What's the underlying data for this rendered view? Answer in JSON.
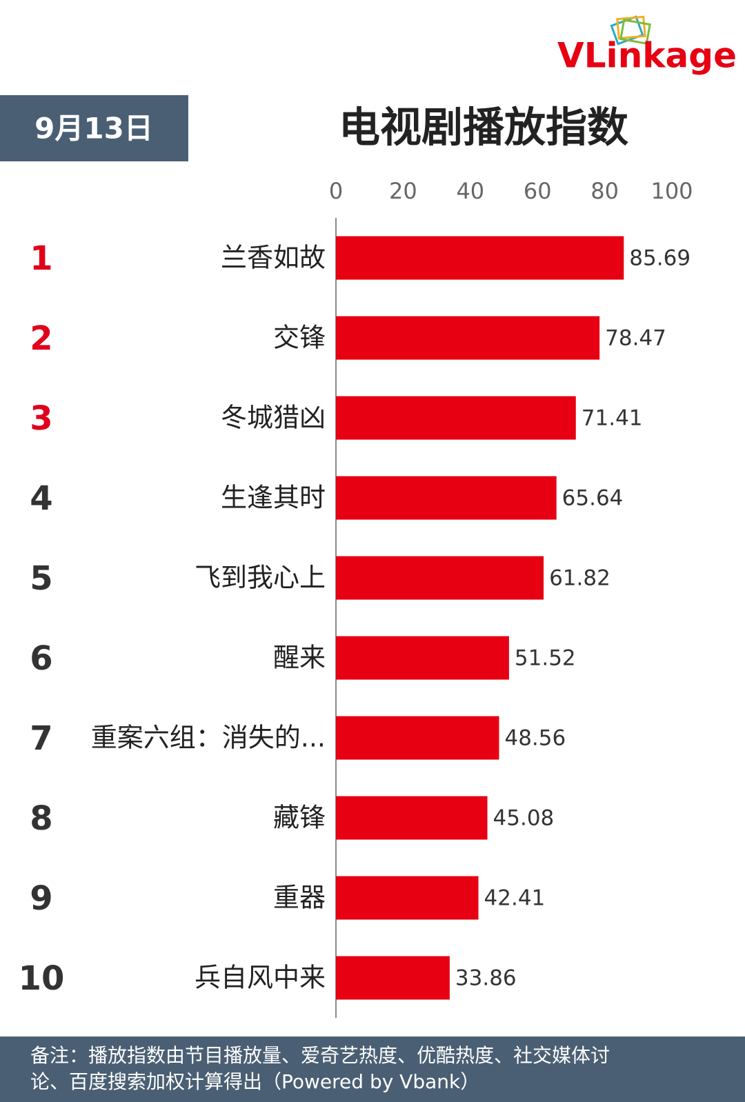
{
  "brand": "VLinkage",
  "date": "9月13日",
  "note": [
    "备注：播放指数由节目播放量、爱奇艺热度、优酷热度、社交媒体讨",
    "论、百度搜索加权计算得出（Powered by Vbank）"
  ],
  "chart_data": {
    "type": "hbar",
    "title": "电视剧播放指数",
    "ranks": [
      1,
      2,
      3,
      4,
      5,
      6,
      7,
      8,
      9,
      10
    ],
    "rank_colors": [
      "#e0001b",
      "#e0001b",
      "#e0001b",
      "#333333",
      "#333333",
      "#333333",
      "#333333",
      "#333333",
      "#333333",
      "#333333"
    ],
    "categories": [
      "兰香如故",
      "交锋",
      "冬城猎凶",
      "生逢其时",
      "飞到我心上",
      "醒来",
      "重案六组：消失的...",
      "藏锋",
      "重器",
      "兵自风中来"
    ],
    "values": [
      85.69,
      78.47,
      71.41,
      65.64,
      61.82,
      51.52,
      48.56,
      45.08,
      42.41,
      33.86
    ],
    "color": "#e60012",
    "xlim": [
      0,
      100
    ],
    "xticks": [
      0,
      20,
      40,
      60,
      80,
      100
    ]
  }
}
